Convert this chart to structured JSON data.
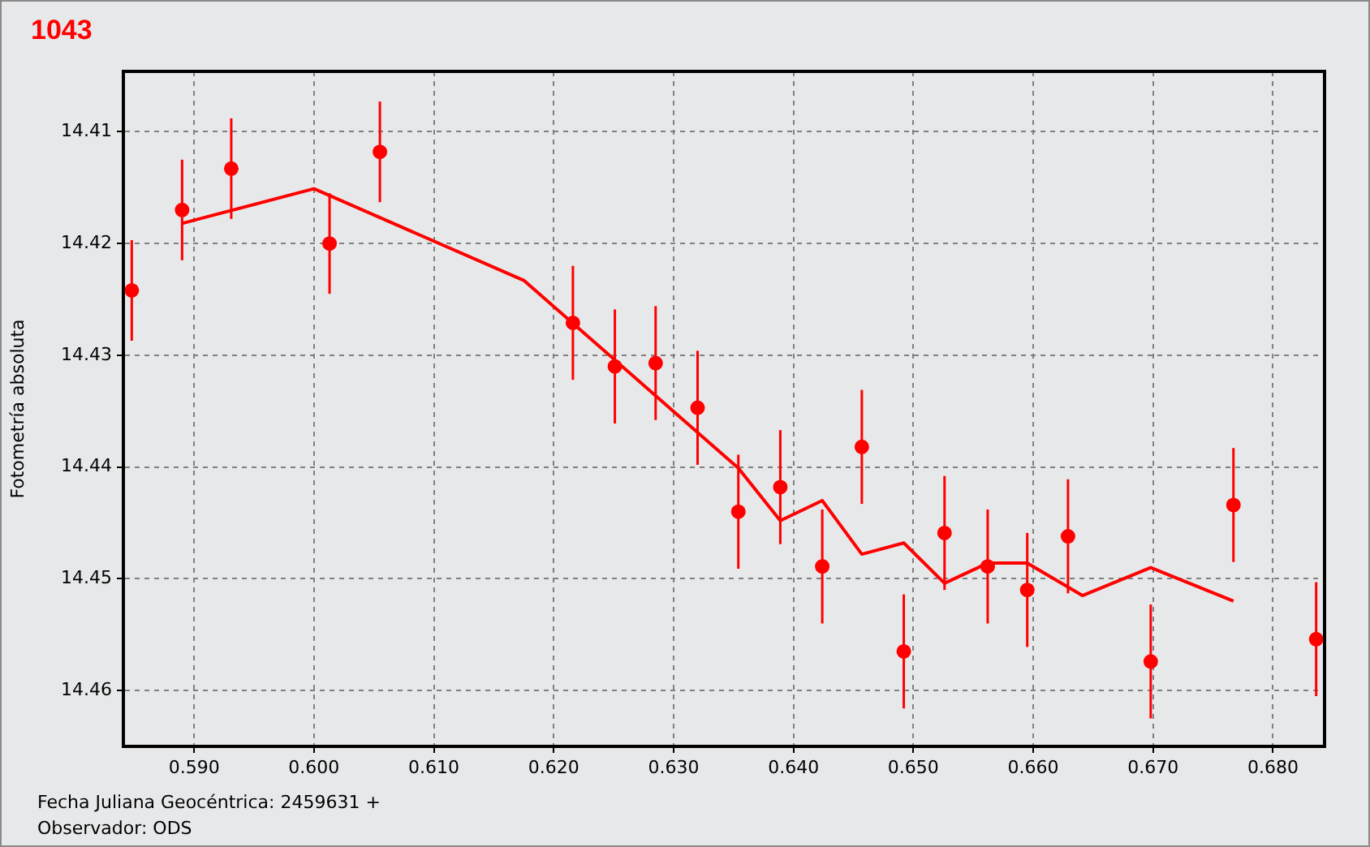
{
  "chart_data": {
    "type": "scatter",
    "title": "1043",
    "xlabel": "Fecha Juliana Geocéntrica: 2459631 +",
    "ylabel": "Fotometría absoluta",
    "annotations": [
      "Observador: ODS"
    ],
    "xlim": [
      0.5841,
      0.6843
    ],
    "ylim": [
      14.465,
      14.4046
    ],
    "xticks": [
      {
        "value": 0.59,
        "label": "0.590"
      },
      {
        "value": 0.6,
        "label": "0.600"
      },
      {
        "value": 0.61,
        "label": "0.610"
      },
      {
        "value": 0.62,
        "label": "0.620"
      },
      {
        "value": 0.63,
        "label": "0.630"
      },
      {
        "value": 0.64,
        "label": "0.640"
      },
      {
        "value": 0.65,
        "label": "0.650"
      },
      {
        "value": 0.66,
        "label": "0.660"
      },
      {
        "value": 0.67,
        "label": "0.670"
      },
      {
        "value": 0.68,
        "label": "0.680"
      }
    ],
    "yticks": [
      14.41,
      14.42,
      14.43,
      14.44,
      14.45,
      14.46
    ],
    "grid": true,
    "legend": false,
    "marker": "circle",
    "series": [
      {
        "color": "#ff0000",
        "x": [
          0.5848,
          0.589,
          0.5931,
          0.6013,
          0.6055,
          0.6216,
          0.6251,
          0.6285,
          0.632,
          0.6354,
          0.6389,
          0.6424,
          0.6457,
          0.6492,
          0.6526,
          0.6562,
          0.6595,
          0.6629,
          0.6698,
          0.6767,
          0.6836
        ],
        "values": [
          14.4242,
          14.417,
          14.4133,
          14.42,
          14.4118,
          14.4271,
          14.431,
          14.4307,
          14.4347,
          14.444,
          14.4418,
          14.4489,
          14.4382,
          14.4565,
          14.4459,
          14.4489,
          14.451,
          14.4462,
          14.4574,
          14.4434,
          14.4554
        ],
        "errors": [
          0.0045,
          0.0045,
          0.0045,
          0.0045,
          0.0045,
          0.0051,
          0.0051,
          0.0051,
          0.0051,
          0.0051,
          0.0051,
          0.0051,
          0.0051,
          0.0051,
          0.0051,
          0.0051,
          0.0051,
          0.0051,
          0.0051,
          0.0051,
          0.0051
        ]
      },
      {
        "type": "line",
        "color": "#ff0000",
        "marker": "none",
        "line_style": "solid",
        "x": [
          0.589,
          0.6,
          0.6175,
          0.6354,
          0.6389,
          0.6424,
          0.6457,
          0.6492,
          0.6526,
          0.6562,
          0.6595,
          0.6641,
          0.6698,
          0.6767
        ],
        "values": [
          14.4182,
          14.4151,
          14.4233,
          14.4401,
          14.4448,
          14.443,
          14.4478,
          14.4468,
          14.4504,
          14.4486,
          14.4486,
          14.4515,
          14.449,
          14.452
        ]
      }
    ]
  }
}
